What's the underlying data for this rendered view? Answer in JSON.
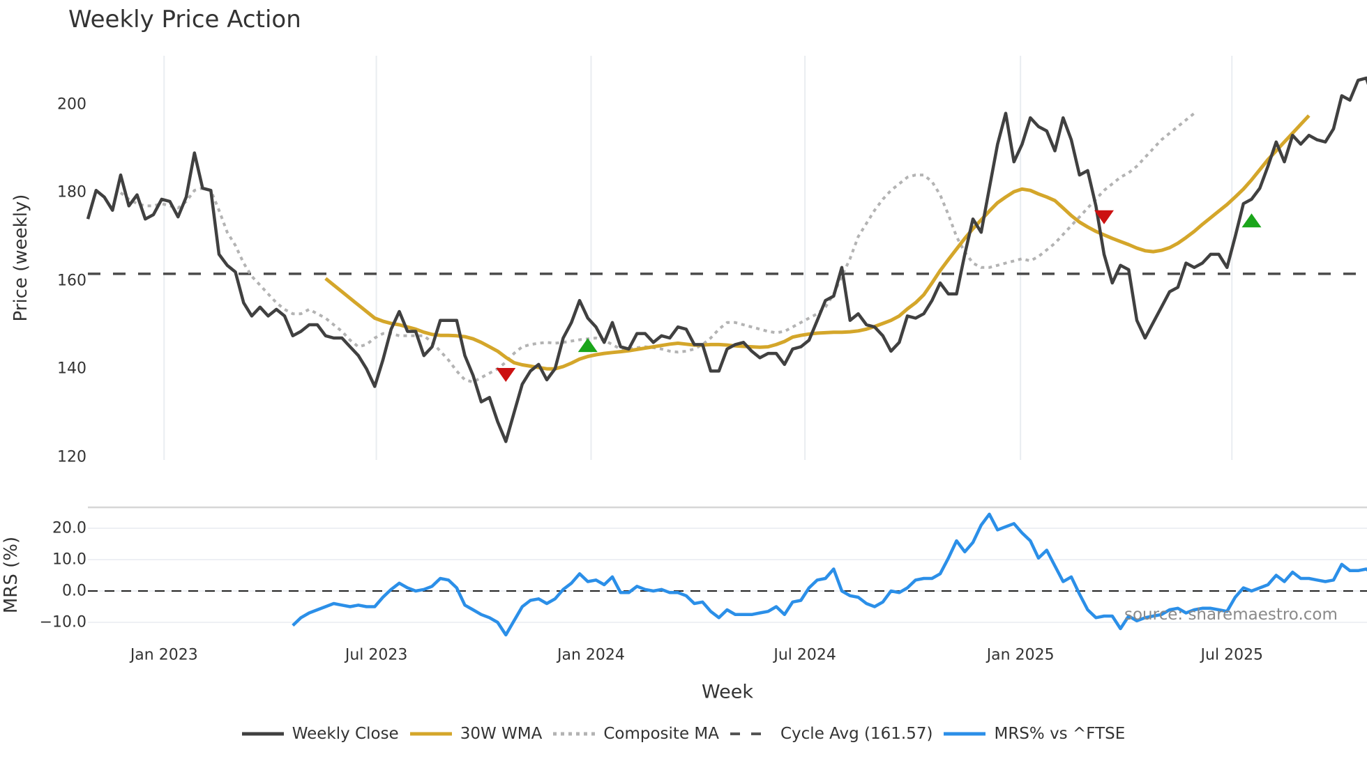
{
  "title": "Weekly Price Action",
  "source_text": "source: sharemaestro.com",
  "axes": {
    "main_ylabel": "Price (weekly)",
    "mrs_ylabel": "MRS (%)",
    "xlabel": "Week",
    "main_yticks": [
      {
        "value": 200,
        "label": "200"
      },
      {
        "value": 180,
        "label": "180"
      },
      {
        "value": 160,
        "label": "160"
      },
      {
        "value": 140,
        "label": "140"
      },
      {
        "value": 120,
        "label": "120"
      }
    ],
    "mrs_yticks": [
      {
        "value": 20,
        "label": "20.0"
      },
      {
        "value": 10,
        "label": "10.0"
      },
      {
        "value": 0,
        "label": "0.0"
      },
      {
        "value": -10,
        "label": "−10.0"
      }
    ],
    "xticks": [
      {
        "week": 9.3,
        "label": "Jan 2023"
      },
      {
        "week": 35.2,
        "label": "Jul 2023"
      },
      {
        "week": 61.4,
        "label": "Jan 2024"
      },
      {
        "week": 87.5,
        "label": "Jul 2024"
      },
      {
        "week": 113.8,
        "label": "Jan 2025"
      },
      {
        "week": 139.6,
        "label": "Jul 2025"
      }
    ]
  },
  "legend": [
    {
      "label": "Weekly Close",
      "style": "solid",
      "color": "#404040"
    },
    {
      "label": "30W WMA",
      "style": "solid",
      "color": "#D4A62A"
    },
    {
      "label": "Composite MA",
      "style": "dotted",
      "color": "#b3b3b3"
    },
    {
      "label": "Cycle Avg (161.57)",
      "style": "dashed",
      "color": "#555555"
    },
    {
      "label": "MRS% vs ^FTSE",
      "style": "solid",
      "color": "#2B8FE8"
    }
  ],
  "colors": {
    "close": "#404040",
    "wma": "#D4A62A",
    "composite": "#b3b3b3",
    "cycle": "#4a4a4a",
    "mrs": "#2B8FE8",
    "buy_marker": "#1AA51A",
    "sell_marker": "#CC1111",
    "grid": "#e9edf1"
  },
  "chart_data": [
    {
      "type": "line",
      "title": "Weekly Price Action",
      "xlabel": "Week",
      "ylabel": "Price (weekly)",
      "ylim": [
        118,
        210
      ],
      "x_range_weeks": [
        0,
        156
      ],
      "x_start_approx": "late Oct 2022",
      "x_end_approx": "late Oct 2025",
      "grid": "vertical gridlines at half-year ticks",
      "legend_position": "bottom center",
      "reference_lines": [
        {
          "name": "Cycle Avg (161.57)",
          "value": 161.57,
          "style": "dashed"
        }
      ],
      "markers": [
        {
          "type": "sell",
          "shape": "triangle-down",
          "week": 51,
          "price": 138.6
        },
        {
          "type": "buy",
          "shape": "triangle-up",
          "week": 61,
          "price": 145.4
        },
        {
          "type": "sell",
          "shape": "triangle-down",
          "week": 124,
          "price": 174.4
        },
        {
          "type": "buy",
          "shape": "triangle-up",
          "week": 142,
          "price": 173.7
        }
      ],
      "series": [
        {
          "name": "Weekly Close",
          "start_week": 0,
          "values": [
            174,
            180.5,
            179,
            176,
            184,
            177,
            179.5,
            174,
            175,
            178.5,
            178,
            174.5,
            179,
            189,
            181,
            180.5,
            166,
            163.5,
            162,
            155,
            152,
            154,
            152,
            153.5,
            152,
            147.5,
            148.5,
            150,
            150,
            147.5,
            147,
            147,
            145,
            143,
            140,
            136,
            142,
            149,
            153,
            148.5,
            148.5,
            143,
            145,
            151,
            151,
            151,
            143,
            138.5,
            132.5,
            133.5,
            128,
            123.5,
            130,
            136.5,
            139.5,
            141,
            137.5,
            140,
            147,
            150.5,
            155.5,
            151.5,
            149.5,
            146,
            150.5,
            145,
            144.5,
            148,
            148,
            146,
            147.5,
            147,
            149.5,
            149,
            145.5,
            145.5,
            139.5,
            139.5,
            144.5,
            145.5,
            146,
            144,
            142.5,
            143.5,
            143.5,
            141,
            144.5,
            145,
            146.5,
            151,
            155.5,
            156.5,
            163,
            151,
            152.5,
            150,
            149.5,
            147.5,
            144,
            146,
            152,
            151.5,
            152.5,
            155.5,
            159.5,
            157,
            157,
            166,
            174,
            171,
            181,
            191,
            198,
            187,
            191,
            197,
            195,
            194,
            189.5,
            197,
            192,
            184,
            185,
            177,
            166,
            159.5,
            163.5,
            162.5,
            151,
            147,
            150.5,
            154,
            157.5,
            158.5,
            164,
            163,
            164,
            166,
            166,
            163,
            170,
            177.5,
            178.5,
            181,
            186,
            191.5,
            187,
            193,
            191,
            193,
            192,
            191.5,
            194.5,
            202,
            201,
            205.5,
            206,
            200.5,
            206
          ]
        },
        {
          "name": "30W WMA",
          "start_week": 29,
          "values": [
            160.5,
            159,
            157.5,
            156,
            154.5,
            153,
            151.5,
            150.8,
            150.3,
            150,
            149.5,
            149,
            148.3,
            147.8,
            147.6,
            147.6,
            147.5,
            147.3,
            146.8,
            146,
            145,
            144,
            142.6,
            141.4,
            140.9,
            140.6,
            140.3,
            140,
            140,
            140.5,
            141.3,
            142.2,
            142.8,
            143.2,
            143.5,
            143.7,
            143.9,
            144.1,
            144.4,
            144.7,
            145,
            145.3,
            145.6,
            145.8,
            145.6,
            145.4,
            145.4,
            145.5,
            145.5,
            145.4,
            145.2,
            145.1,
            145,
            144.9,
            145,
            145.5,
            146.2,
            147.2,
            147.6,
            147.9,
            148.1,
            148.2,
            148.3,
            148.3,
            148.4,
            148.6,
            149,
            149.6,
            150.3,
            151,
            152,
            153.6,
            155,
            156.8,
            159.5,
            162.3,
            164.8,
            167.2,
            169.6,
            171.8,
            173.8,
            175.8,
            177.7,
            179,
            180.2,
            180.8,
            180.5,
            179.7,
            179,
            178.2,
            176.5,
            174.8,
            173.3,
            172.2,
            171.2,
            170.4,
            169.6,
            168.9,
            168.2,
            167.4,
            166.8,
            166.6,
            166.9,
            167.5,
            168.5,
            169.8,
            171.2,
            172.8,
            174.3,
            175.8,
            177.3,
            179,
            180.8,
            182.9,
            185.2,
            187.5,
            189.5,
            191.5,
            193.5,
            195.5,
            197.5
          ]
        },
        {
          "name": "Composite MA",
          "start_week": 4,
          "values": [
            180,
            178.5,
            177.5,
            177,
            177,
            177.5,
            177,
            176.5,
            178,
            180.5,
            181,
            180.5,
            176,
            171,
            168,
            164,
            161,
            159,
            157,
            155,
            153.5,
            152.5,
            152.5,
            153.5,
            152.5,
            151.5,
            150,
            148.5,
            146.5,
            145,
            145.5,
            147,
            148,
            148,
            147.5,
            147.5,
            147.5,
            147.5,
            146,
            144,
            142,
            139.5,
            137.5,
            137,
            138,
            139,
            140,
            141.5,
            143.5,
            145,
            145.5,
            145.8,
            146,
            145.8,
            146,
            146.3,
            146.6,
            146.8,
            147,
            146.5,
            145.5,
            144.5,
            144.5,
            144.8,
            145,
            144.8,
            144.5,
            144,
            143.8,
            144,
            144.5,
            145.5,
            147,
            149,
            150.5,
            150.5,
            150,
            149.5,
            149,
            148.5,
            148.2,
            148.5,
            149.5,
            150.5,
            151.5,
            152.5,
            154,
            157,
            161,
            165,
            170,
            173,
            176,
            178.5,
            180.5,
            182,
            183.5,
            184,
            184,
            182.5,
            179.5,
            175,
            170,
            166.5,
            164,
            163,
            163,
            163.5,
            164,
            164.5,
            165,
            164.5,
            165.5,
            167,
            168.5,
            170.5,
            172.5,
            174.5,
            176.5,
            178.5,
            180.5,
            182,
            183.5,
            184.5,
            186,
            188,
            190,
            192,
            193.5,
            195,
            196.5,
            198
          ]
        }
      ]
    },
    {
      "type": "line",
      "title": "MRS% vs ^FTSE",
      "ylabel": "MRS (%)",
      "ylim": [
        -16,
        27
      ],
      "reference_lines": [
        {
          "value": 0,
          "style": "dashed"
        }
      ],
      "series": [
        {
          "name": "MRS% vs ^FTSE",
          "start_week": 25,
          "values": [
            -11,
            -8.5,
            -7,
            -6,
            -5,
            -4,
            -4.5,
            -5,
            -4.5,
            -5,
            -5,
            -2,
            0.5,
            2.5,
            1,
            0,
            0.5,
            1.5,
            4,
            3.5,
            1,
            -4.5,
            -6,
            -7.5,
            -8.5,
            -10,
            -14,
            -9.5,
            -5,
            -3,
            -2.5,
            -4,
            -2.5,
            0.5,
            2.5,
            5.5,
            3,
            3.5,
            2,
            4.5,
            -0.5,
            -0.5,
            1.5,
            0.5,
            0,
            0.5,
            -0.5,
            -0.5,
            -1.5,
            -4,
            -3.5,
            -6.5,
            -8.5,
            -6,
            -7.5,
            -7.5,
            -7.5,
            -7,
            -6.5,
            -5,
            -7.5,
            -3.5,
            -3,
            1,
            3.5,
            4,
            7,
            0,
            -1.5,
            -2,
            -4,
            -5,
            -3.5,
            0,
            -0.5,
            1,
            3.5,
            4,
            4,
            5.5,
            10.5,
            16,
            12.5,
            15.5,
            21,
            24.5,
            19.5,
            20.5,
            21.5,
            18.5,
            16,
            10.5,
            13,
            8,
            3,
            4.5,
            -1,
            -6,
            -8.5,
            -8,
            -8,
            -12,
            -8,
            -9.5,
            -8.5,
            -8,
            -7.5,
            -6,
            -5.5,
            -7,
            -6,
            -5.5,
            -5.5,
            -6,
            -6.5,
            -2,
            1,
            0,
            1,
            2,
            5,
            3,
            6,
            4,
            4,
            3.5,
            3,
            3.5,
            8.5,
            6.5,
            6.5,
            7,
            5,
            5
          ]
        }
      ]
    }
  ]
}
